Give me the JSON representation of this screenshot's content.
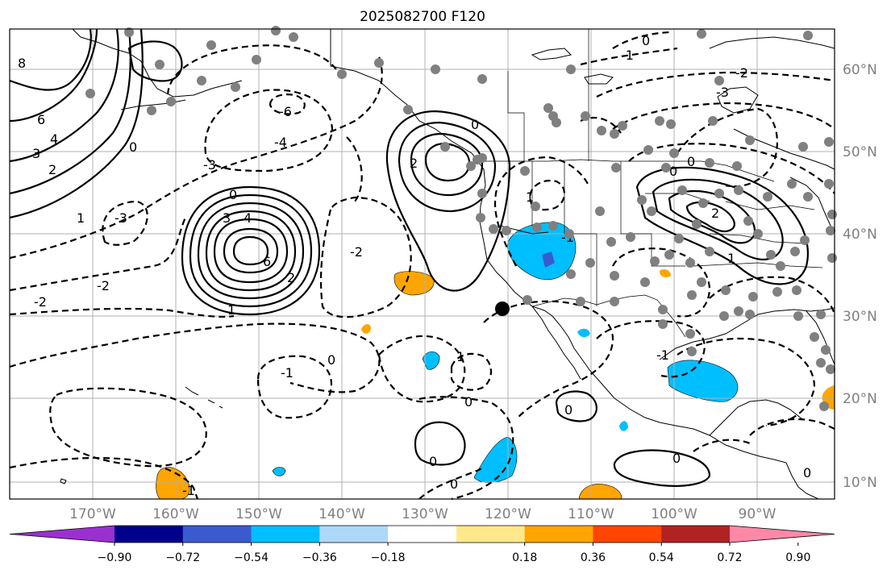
{
  "title": "2025082700 F120",
  "map": {
    "longitude_labels": [
      "170°W",
      "160°W",
      "150°W",
      "140°W",
      "130°W",
      "120°W",
      "110°W",
      "100°W",
      "90°W"
    ],
    "latitude_labels": [
      "60°N",
      "50°N",
      "40°N",
      "30°N",
      "20°N",
      "10°N"
    ],
    "contour_labels": [
      "8",
      "6",
      "4",
      "3",
      "2",
      "1",
      "0",
      "-1",
      "-2",
      "-3",
      "-4",
      "-6"
    ],
    "station_marker_color": "#808080",
    "highlight_marker_color": "#000000"
  },
  "colorbar": {
    "ticks": [
      "−0.90",
      "−0.72",
      "−0.54",
      "−0.36",
      "−0.18",
      "0.18",
      "0.36",
      "0.54",
      "0.72",
      "0.90"
    ],
    "colors": [
      "#9b30d0",
      "#00008b",
      "#3a5bd0",
      "#00bfff",
      "#add8f7",
      "#ffffff",
      "#fde98a",
      "#ffa500",
      "#ff4500",
      "#b22222",
      "#ff88a8"
    ]
  }
}
